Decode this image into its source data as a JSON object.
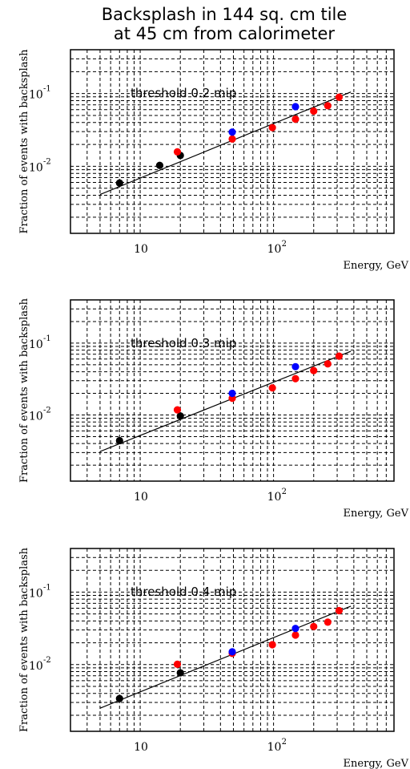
{
  "title": {
    "line1": "Backsplash in 144 sq. cm tile",
    "line2": "at 45 cm from calorimeter"
  },
  "chart_data": [
    {
      "type": "scatter",
      "annotation": "threshold 0.2 mip",
      "xlabel": "Energy, GeV",
      "ylabel": "Fraction of events with backsplash",
      "xscale": "log",
      "yscale": "log",
      "xlim": [
        3,
        800
      ],
      "ylim": [
        0.0012,
        0.4
      ],
      "grid": true,
      "x_ticks": [
        {
          "base": "10",
          "exp": ""
        },
        {
          "base": "10",
          "exp": "2"
        }
      ],
      "y_ticks": [
        {
          "base": "10",
          "exp": "-1"
        },
        {
          "base": "10",
          "exp": "-2"
        }
      ],
      "fit_line": {
        "x": [
          5,
          380
        ],
        "y": [
          0.0041,
          0.105
        ]
      },
      "series": [
        {
          "color": "#000000",
          "points": [
            [
              7,
              0.0059
            ],
            [
              14,
              0.0103
            ],
            [
              20,
              0.0141
            ]
          ]
        },
        {
          "color": "#ff0000",
          "points": [
            [
              19,
              0.0158
            ],
            [
              49,
              0.0237
            ],
            [
              98,
              0.034
            ],
            [
              146,
              0.0445
            ],
            [
              200,
              0.0575
            ],
            [
              255,
              0.068
            ],
            [
              310,
              0.089
            ]
          ]
        },
        {
          "color": "#0000ff",
          "points": [
            [
              49,
              0.0295
            ],
            [
              146,
              0.066
            ]
          ]
        }
      ]
    },
    {
      "type": "scatter",
      "annotation": "threshold 0.3 mip",
      "xlabel": "Energy, GeV",
      "ylabel": "Fraction of events with backsplash",
      "xscale": "log",
      "yscale": "log",
      "xlim": [
        3,
        800
      ],
      "ylim": [
        0.0012,
        0.4
      ],
      "grid": true,
      "x_ticks": [
        {
          "base": "10",
          "exp": ""
        },
        {
          "base": "10",
          "exp": "2"
        }
      ],
      "y_ticks": [
        {
          "base": "10",
          "exp": "-1"
        },
        {
          "base": "10",
          "exp": "-2"
        }
      ],
      "fit_line": {
        "x": [
          5,
          380
        ],
        "y": [
          0.0031,
          0.077
        ]
      },
      "series": [
        {
          "color": "#000000",
          "points": [
            [
              7,
              0.0044
            ],
            [
              20,
              0.0097
            ]
          ]
        },
        {
          "color": "#ff0000",
          "points": [
            [
              19,
              0.0118
            ],
            [
              49,
              0.0171
            ],
            [
              98,
              0.0238
            ],
            [
              146,
              0.032
            ],
            [
              200,
              0.0415
            ],
            [
              255,
              0.0515
            ],
            [
              310,
              0.066
            ]
          ]
        },
        {
          "color": "#0000ff",
          "points": [
            [
              49,
              0.02
            ],
            [
              146,
              0.047
            ]
          ]
        }
      ]
    },
    {
      "type": "scatter",
      "annotation": "threshold 0.4 mip",
      "xlabel": "Energy, GeV",
      "ylabel": "Fraction of events with backsplash",
      "xscale": "log",
      "yscale": "log",
      "xlim": [
        3,
        800
      ],
      "ylim": [
        0.0012,
        0.4
      ],
      "grid": true,
      "x_ticks": [
        {
          "base": "10",
          "exp": ""
        },
        {
          "base": "10",
          "exp": "2"
        }
      ],
      "y_ticks": [
        {
          "base": "10",
          "exp": "-1"
        },
        {
          "base": "10",
          "exp": "-2"
        }
      ],
      "fit_line": {
        "x": [
          5,
          380
        ],
        "y": [
          0.0025,
          0.064
        ]
      },
      "series": [
        {
          "color": "#000000",
          "points": [
            [
              7,
              0.0034
            ],
            [
              20,
              0.0077
            ]
          ]
        },
        {
          "color": "#ff0000",
          "points": [
            [
              19,
              0.0101
            ],
            [
              49,
              0.0143
            ],
            [
              98,
              0.0188
            ],
            [
              146,
              0.0255
            ],
            [
              200,
              0.0335
            ],
            [
              255,
              0.0385
            ],
            [
              310,
              0.0555
            ]
          ]
        },
        {
          "color": "#0000ff",
          "points": [
            [
              49,
              0.015
            ],
            [
              146,
              0.0315
            ]
          ]
        }
      ]
    }
  ]
}
